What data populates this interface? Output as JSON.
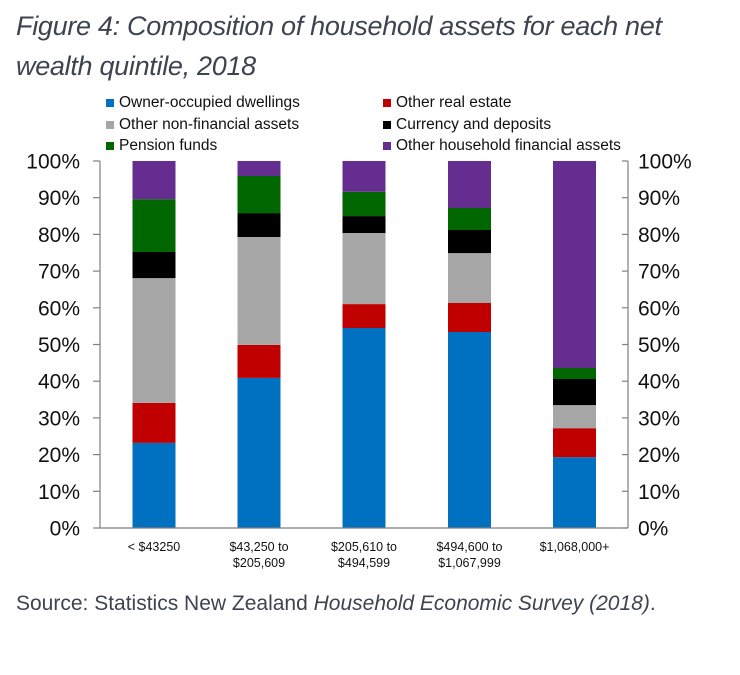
{
  "title": "Figure 4: Composition of household assets for each net wealth quintile, 2018",
  "source": {
    "prefix": "Source: Statistics New Zealand ",
    "italic": "Household Economic Survey (2018)",
    "suffix": "."
  },
  "chart_data": {
    "type": "bar",
    "stacked": true,
    "title": "Figure 4: Composition of household assets for each net wealth quintile, 2018",
    "xlabel": "",
    "ylabel": "",
    "ylim": [
      0,
      100
    ],
    "y_unit": "%",
    "yticks": [
      "0%",
      "10%",
      "20%",
      "30%",
      "40%",
      "50%",
      "60%",
      "70%",
      "80%",
      "90%",
      "100%"
    ],
    "secondary_y_axis": true,
    "grid": false,
    "legend_position": "top",
    "categories": [
      [
        "< $43250"
      ],
      [
        "$43,250 to",
        "$205,609"
      ],
      [
        "$205,610 to",
        "$494,599"
      ],
      [
        "$494,600 to",
        "$1,067,999"
      ],
      [
        "$1,068,000+"
      ]
    ],
    "series": [
      {
        "name": "Owner-occupied dwellings",
        "color": "#0070c0",
        "values": [
          23.2,
          40.9,
          54.5,
          53.4,
          19.3
        ]
      },
      {
        "name": "Other real estate",
        "color": "#c00000",
        "values": [
          10.9,
          9.0,
          6.5,
          7.9,
          7.9
        ]
      },
      {
        "name": "Other non-financial assets",
        "color": "#a6a6a6",
        "values": [
          34.0,
          29.4,
          19.4,
          13.6,
          6.3
        ]
      },
      {
        "name": "Currency and deposits",
        "color": "#000000",
        "values": [
          7.1,
          6.5,
          4.6,
          6.3,
          7.1
        ]
      },
      {
        "name": "Pension funds",
        "color": "#006600",
        "values": [
          14.4,
          10.1,
          6.6,
          6.0,
          3.0
        ]
      },
      {
        "name": "Other household financial assets",
        "color": "#652d90",
        "values": [
          10.4,
          4.1,
          8.4,
          12.8,
          56.4
        ]
      }
    ],
    "legend_order": [
      "Owner-occupied dwellings",
      "Other real estate",
      "Other non-financial assets",
      "Currency and deposits",
      "Pension funds",
      "Other household financial assets"
    ]
  }
}
